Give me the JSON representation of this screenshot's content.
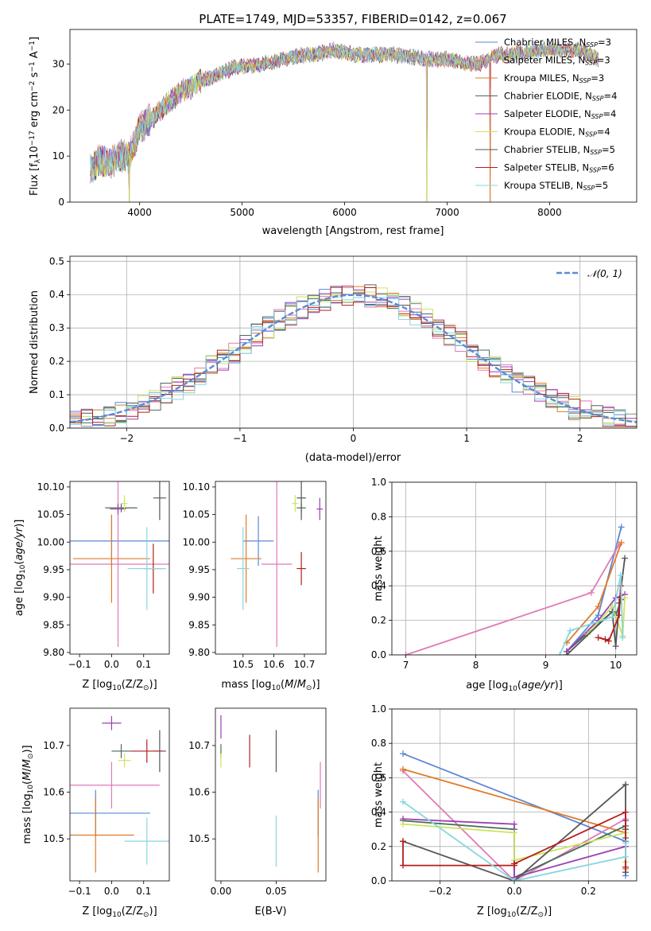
{
  "figure": {
    "title": "PLATE=1749, MJD=53357, FIBERID=0142, z=0.067"
  },
  "colors": {
    "Chabrier MILES": "#5b87d6",
    "Salpeter MILES": "#e07ab7",
    "Kroupa MILES": "#e07b28",
    "Chabrier ELODIE": "#4a6b5a",
    "Salpeter ELODIE": "#9b3fb0",
    "Kroupa ELODIE": "#c9e55a",
    "Chabrier STELIB": "#555555",
    "Salpeter STELIB": "#b51e1e",
    "Kroupa STELIB": "#86d6e0",
    "normal": "#5b8bd6"
  },
  "chart_data": [
    {
      "id": "spectrum",
      "type": "line",
      "xlabel": "wavelength [Angstrom, rest frame]",
      "ylabel": "Flux [f_λ10^-17 erg cm^-2 s^-1 A^-1]",
      "xlim": [
        3320,
        8850
      ],
      "ylim": [
        0,
        37.5
      ],
      "xticks": [
        4000,
        5000,
        6000,
        7000,
        8000
      ],
      "yticks": [
        0,
        10,
        20,
        30
      ],
      "grid": false,
      "legend_position": "top-right",
      "legend": [
        {
          "label": "Chabrier MILES, N",
          "sub": "SSP",
          "suffix": "=3"
        },
        {
          "label": "Salpeter MILES, N",
          "sub": "SSP",
          "suffix": "=3"
        },
        {
          "label": "Kroupa MILES, N",
          "sub": "SSP",
          "suffix": "=3"
        },
        {
          "label": "Chabrier ELODIE, N",
          "sub": "SSP",
          "suffix": "=4"
        },
        {
          "label": "Salpeter ELODIE, N",
          "sub": "SSP",
          "suffix": "=4"
        },
        {
          "label": "Kroupa ELODIE, N",
          "sub": "SSP",
          "suffix": "=4"
        },
        {
          "label": "Chabrier STELIB, N",
          "sub": "SSP",
          "suffix": "=5"
        },
        {
          "label": "Salpeter STELIB, N",
          "sub": "SSP",
          "suffix": "=6"
        },
        {
          "label": "Kroupa STELIB, N",
          "sub": "SSP",
          "suffix": "=5"
        }
      ],
      "series_names": [
        "Chabrier MILES",
        "Salpeter MILES",
        "Kroupa MILES",
        "Chabrier ELODIE",
        "Salpeter ELODIE",
        "Kroupa ELODIE",
        "Chabrier STELIB",
        "Salpeter STELIB",
        "Kroupa STELIB"
      ],
      "continuum": {
        "x": [
          3520,
          3600,
          3700,
          3800,
          3900,
          4000,
          4100,
          4200,
          4300,
          4400,
          4500,
          4600,
          4700,
          4800,
          4900,
          5000,
          5100,
          5200,
          5300,
          5400,
          5500,
          5600,
          5700,
          5800,
          5900,
          6000,
          6100,
          6200,
          6300,
          6400,
          6500,
          6600,
          6700,
          6800,
          6900,
          7000,
          7100,
          7200,
          7300,
          7400,
          7500,
          7600,
          7700,
          7800,
          7900,
          8000,
          8100,
          8200,
          8300,
          8400,
          8480
        ],
        "y": [
          7,
          9,
          8.5,
          10,
          10,
          16,
          18,
          20,
          22,
          24,
          25,
          26.5,
          27,
          28,
          29,
          29.5,
          29.5,
          30,
          30.5,
          31,
          31.5,
          32,
          32,
          32.5,
          33,
          32.5,
          32,
          32,
          32,
          32,
          32,
          31.5,
          31.5,
          31,
          31,
          31,
          30.5,
          30,
          30,
          31,
          32,
          32,
          32.5,
          32.5,
          33,
          33,
          33,
          33,
          33,
          32,
          31
        ]
      },
      "dips": [
        {
          "x": 3900,
          "y": 0
        },
        {
          "x": 6800,
          "y": 0
        },
        {
          "x": 7420,
          "y": 0
        }
      ]
    },
    {
      "id": "residuals",
      "type": "line",
      "xlabel": "(data-model)/error",
      "ylabel": "Normed distribution",
      "xlim": [
        -2.5,
        2.5
      ],
      "ylim": [
        0,
        0.515
      ],
      "xticks": [
        -2,
        -1,
        0,
        1,
        2
      ],
      "yticks": [
        0.0,
        0.1,
        0.2,
        0.3,
        0.4,
        0.5
      ],
      "grid": true,
      "legend_position": "top-right",
      "legend": [
        {
          "label": "𝒩(0, 1)"
        }
      ],
      "bins_start": -2.5,
      "bin_width": 0.1,
      "normal_curve": {
        "mu": 0,
        "sigma": 1
      }
    },
    {
      "id": "age_vs_Z",
      "type": "scatter",
      "xlabel": "Z [log10(Z/Z☉)]",
      "ylabel": "age  [log10(age/yr)]",
      "xlim": [
        -0.13,
        0.18
      ],
      "ylim": [
        9.797,
        10.11
      ],
      "xticks": [
        -0.1,
        0.0,
        0.1
      ],
      "yticks": [
        9.8,
        9.85,
        9.9,
        9.95,
        10.0,
        10.05,
        10.1
      ],
      "grid": false,
      "points": [
        {
          "series": "Chabrier MILES",
          "x": 0.0,
          "xerr": 0.18,
          "y": 10.002,
          "yerr": 0.045
        },
        {
          "series": "Salpeter MILES",
          "x": 0.02,
          "xerr": 0.16,
          "y": 9.96,
          "yerr": 0.15
        },
        {
          "series": "Kroupa MILES",
          "x": 0.0,
          "xerr": 0.12,
          "y": 9.97,
          "yerr": 0.08
        },
        {
          "series": "Chabrier ELODIE",
          "x": 0.03,
          "xerr": 0.05,
          "y": 10.062,
          "yerr": 0.008
        },
        {
          "series": "Salpeter ELODIE",
          "x": 0.02,
          "xerr": 0.025,
          "y": 10.06,
          "yerr": 0.01
        },
        {
          "series": "Kroupa ELODIE",
          "x": 0.04,
          "xerr": 0.01,
          "y": 10.07,
          "yerr": 0.015
        },
        {
          "series": "Chabrier STELIB",
          "x": 0.15,
          "xerr": 0.02,
          "y": 10.08,
          "yerr": 0.04
        },
        {
          "series": "Salpeter STELIB",
          "x": 0.13,
          "xerr": 0.03,
          "y": 9.952,
          "yerr": 0.045
        },
        {
          "series": "Kroupa STELIB",
          "x": 0.11,
          "xerr": 0.06,
          "y": 9.952,
          "yerr": 0.075
        }
      ]
    },
    {
      "id": "age_vs_mass",
      "type": "scatter",
      "xlabel": "mass [log10(M/M☉)]",
      "ylabel": "",
      "xlim": [
        10.41,
        10.77
      ],
      "ylim": [
        9.797,
        10.11
      ],
      "xticks": [
        10.5,
        10.6,
        10.7
      ],
      "yticks": [
        9.8,
        9.85,
        9.9,
        9.95,
        10.0,
        10.05,
        10.1
      ],
      "grid": false,
      "points": [
        {
          "series": "Chabrier MILES",
          "x": 10.55,
          "xerr": 0.05,
          "y": 10.002,
          "yerr": 0.045
        },
        {
          "series": "Salpeter MILES",
          "x": 10.61,
          "xerr": 0.05,
          "y": 9.96,
          "yerr": 0.15
        },
        {
          "series": "Kroupa MILES",
          "x": 10.51,
          "xerr": 0.05,
          "y": 9.97,
          "yerr": 0.08
        },
        {
          "series": "Chabrier ELODIE",
          "x": 10.69,
          "xerr": 0.015,
          "y": 10.062,
          "yerr": 0.008
        },
        {
          "series": "Salpeter ELODIE",
          "x": 10.75,
          "xerr": 0.01,
          "y": 10.06,
          "yerr": 0.02
        },
        {
          "series": "Kroupa ELODIE",
          "x": 10.67,
          "xerr": 0.01,
          "y": 10.07,
          "yerr": 0.015
        },
        {
          "series": "Chabrier STELIB",
          "x": 10.69,
          "xerr": 0.015,
          "y": 10.08,
          "yerr": 0.04
        },
        {
          "series": "Salpeter STELIB",
          "x": 10.69,
          "xerr": 0.015,
          "y": 9.952,
          "yerr": 0.03
        },
        {
          "series": "Kroupa STELIB",
          "x": 10.5,
          "xerr": 0.02,
          "y": 9.952,
          "yerr": 0.075
        }
      ]
    },
    {
      "id": "mass_weight_vs_age",
      "type": "line",
      "xlabel": "age  [log10(age/yr)]",
      "ylabel": "mass weight",
      "xlim": [
        6.8,
        10.3
      ],
      "ylim": [
        0,
        1
      ],
      "xticks": [
        7,
        8,
        9,
        10
      ],
      "yticks": [
        0.0,
        0.2,
        0.4,
        0.6,
        0.8,
        1.0
      ],
      "grid": true,
      "series": [
        {
          "name": "Chabrier MILES",
          "x": [
            9.3,
            9.75,
            10.08
          ],
          "y": [
            0.02,
            0.23,
            0.74
          ]
        },
        {
          "name": "Salpeter MILES",
          "x": [
            7.0,
            9.65,
            10.05
          ],
          "y": [
            0.0,
            0.36,
            0.64
          ]
        },
        {
          "name": "Kroupa MILES",
          "x": [
            9.3,
            9.75,
            10.08
          ],
          "y": [
            0.07,
            0.28,
            0.65
          ]
        },
        {
          "name": "Chabrier ELODIE",
          "x": [
            9.3,
            9.95,
            10.0,
            10.08
          ],
          "y": [
            0.02,
            0.25,
            0.23,
            0.32
          ]
        },
        {
          "name": "Salpeter ELODIE",
          "x": [
            9.3,
            9.75,
            10.0,
            10.13
          ],
          "y": [
            0.02,
            0.2,
            0.33,
            0.35
          ]
        },
        {
          "name": "Kroupa ELODIE",
          "x": [
            9.6,
            9.95,
            10.1,
            10.13
          ],
          "y": [
            0.12,
            0.28,
            0.11,
            0.33
          ]
        },
        {
          "name": "Chabrier STELIB",
          "x": [
            9.3,
            9.95,
            10.0,
            10.05,
            10.13
          ],
          "y": [
            0.0,
            0.25,
            0.05,
            0.3,
            0.56
          ]
        },
        {
          "name": "Salpeter STELIB",
          "x": [
            9.75,
            9.85,
            9.9,
            10.05,
            10.07
          ],
          "y": [
            0.1,
            0.09,
            0.08,
            0.23,
            0.4
          ]
        },
        {
          "name": "Kroupa STELIB",
          "x": [
            9.2,
            9.35,
            9.95,
            10.07,
            10.1
          ],
          "y": [
            0.0,
            0.14,
            0.22,
            0.46,
            0.1
          ]
        }
      ]
    },
    {
      "id": "mass_vs_Z",
      "type": "scatter",
      "xlabel": "Z [log10(Z/Z☉)]",
      "ylabel": "mass [log10(M/M☉)]",
      "xlim": [
        -0.13,
        0.18
      ],
      "ylim": [
        10.41,
        10.78
      ],
      "xticks": [
        -0.1,
        0.0,
        0.1
      ],
      "yticks": [
        10.5,
        10.6,
        10.7
      ],
      "grid": false,
      "points": [
        {
          "series": "Chabrier MILES",
          "x": -0.05,
          "xerr": 0.17,
          "y": 10.555,
          "yerr": 0.05
        },
        {
          "series": "Salpeter MILES",
          "x": 0.0,
          "xerr": 0.15,
          "y": 10.615,
          "yerr": 0.05
        },
        {
          "series": "Kroupa MILES",
          "x": -0.05,
          "xerr": 0.12,
          "y": 10.508,
          "yerr": 0.08
        },
        {
          "series": "Chabrier ELODIE",
          "x": 0.03,
          "xerr": 0.03,
          "y": 10.688,
          "yerr": 0.015
        },
        {
          "series": "Salpeter ELODIE",
          "x": 0.0,
          "xerr": 0.03,
          "y": 10.748,
          "yerr": 0.015
        },
        {
          "series": "Kroupa ELODIE",
          "x": 0.04,
          "xerr": 0.02,
          "y": 10.668,
          "yerr": 0.015
        },
        {
          "series": "Chabrier STELIB",
          "x": 0.15,
          "xerr": 0.02,
          "y": 10.688,
          "yerr": 0.045
        },
        {
          "series": "Salpeter STELIB",
          "x": 0.11,
          "xerr": 0.05,
          "y": 10.688,
          "yerr": 0.025
        },
        {
          "series": "Kroupa STELIB",
          "x": 0.11,
          "xerr": 0.07,
          "y": 10.495,
          "yerr": 0.05
        }
      ]
    },
    {
      "id": "mass_vs_ebv",
      "type": "scatter",
      "xlabel": "E(B-V)",
      "ylabel": "",
      "xlim": [
        -0.005,
        0.095
      ],
      "ylim": [
        10.41,
        10.78
      ],
      "xticks": [
        0.0,
        0.05
      ],
      "yticks": [
        10.5,
        10.6,
        10.7
      ],
      "grid": false,
      "points": [
        {
          "series": "Chabrier MILES",
          "x": 0.088,
          "y": 10.555,
          "yerr": 0.05
        },
        {
          "series": "Salpeter MILES",
          "x": 0.09,
          "y": 10.615,
          "yerr": 0.05
        },
        {
          "series": "Kroupa MILES",
          "x": 0.088,
          "y": 10.508,
          "yerr": 0.08
        },
        {
          "series": "Chabrier ELODIE",
          "x": 0.0,
          "y": 10.688,
          "yerr": 0.015
        },
        {
          "series": "Salpeter ELODIE",
          "x": 0.0,
          "y": 10.74,
          "yerr": 0.025
        },
        {
          "series": "Kroupa ELODIE",
          "x": 0.0,
          "y": 10.668,
          "yerr": 0.015
        },
        {
          "series": "Chabrier STELIB",
          "x": 0.05,
          "y": 10.688,
          "yerr": 0.045
        },
        {
          "series": "Salpeter STELIB",
          "x": 0.026,
          "y": 10.688,
          "yerr": 0.035
        },
        {
          "series": "Kroupa STELIB",
          "x": 0.05,
          "y": 10.495,
          "yerr": 0.055
        }
      ]
    },
    {
      "id": "mass_weight_vs_Z",
      "type": "line",
      "xlabel": "Z [log10(Z/Z☉)]",
      "ylabel": "mass weight",
      "xlim": [
        -0.33,
        0.33
      ],
      "ylim": [
        0,
        1
      ],
      "xticks": [
        -0.2,
        0.0,
        0.2
      ],
      "yticks": [
        0.0,
        0.2,
        0.4,
        0.6,
        0.8,
        1.0
      ],
      "grid": true,
      "series": [
        {
          "name": "Chabrier MILES",
          "x": [
            -0.3,
            0.3,
            0.3
          ],
          "y": [
            0.74,
            0.23,
            0.03
          ]
        },
        {
          "name": "Salpeter MILES",
          "x": [
            -0.3,
            0.0,
            0.3
          ],
          "y": [
            0.64,
            0.0,
            0.36
          ]
        },
        {
          "name": "Kroupa MILES",
          "x": [
            -0.3,
            0.3,
            0.3
          ],
          "y": [
            0.65,
            0.28,
            0.07
          ]
        },
        {
          "name": "Chabrier ELODIE",
          "x": [
            -0.3,
            0.0,
            0.0,
            0.3,
            0.3
          ],
          "y": [
            0.35,
            0.3,
            0.02,
            0.32,
            0.25
          ]
        },
        {
          "name": "Salpeter ELODIE",
          "x": [
            -0.3,
            0.0,
            0.0,
            0.3,
            0.3
          ],
          "y": [
            0.36,
            0.33,
            0.02,
            0.2,
            0.35
          ]
        },
        {
          "name": "Kroupa ELODIE",
          "x": [
            -0.3,
            0.0,
            0.0,
            0.3,
            0.3
          ],
          "y": [
            0.33,
            0.28,
            0.12,
            0.28,
            0.11
          ]
        },
        {
          "name": "Chabrier STELIB",
          "x": [
            -0.3,
            0.0,
            0.3,
            0.3,
            0.3
          ],
          "y": [
            0.23,
            0.0,
            0.56,
            0.3,
            0.05
          ]
        },
        {
          "name": "Salpeter STELIB",
          "x": [
            -0.3,
            -0.3,
            0.0,
            0.0,
            0.3,
            0.3
          ],
          "y": [
            0.23,
            0.09,
            0.09,
            0.1,
            0.4,
            0.08
          ]
        },
        {
          "name": "Kroupa STELIB",
          "x": [
            -0.3,
            0.0,
            0.0,
            0.3,
            0.3
          ],
          "y": [
            0.46,
            0.0,
            0.0,
            0.14,
            0.22
          ]
        }
      ]
    }
  ]
}
